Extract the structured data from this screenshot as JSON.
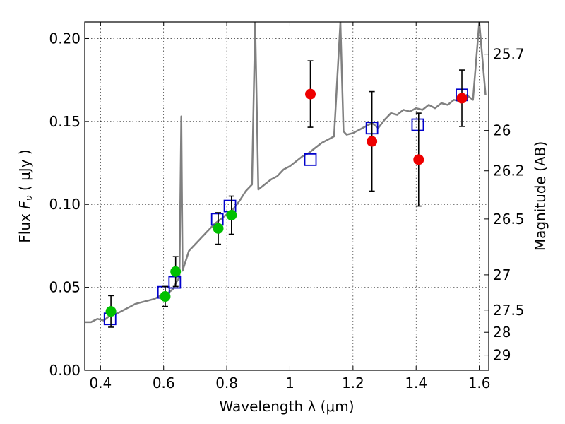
{
  "chart_data": {
    "type": "scatter",
    "title": "",
    "xlabel": "Wavelength  λ (μm)",
    "ylabel": "Flux  F_ν  ( μJy )",
    "ylabel_right": "Magnitude (AB)",
    "xlim": [
      0.35,
      1.63
    ],
    "ylim": [
      0.0,
      0.21
    ],
    "grid": true,
    "x_ticks": [
      {
        "value": 0.4,
        "label": "0.4"
      },
      {
        "value": 0.6,
        "label": "0.6"
      },
      {
        "value": 0.8,
        "label": "0.8"
      },
      {
        "value": 1.0,
        "label": "1"
      },
      {
        "value": 1.2,
        "label": "1.2"
      },
      {
        "value": 1.4,
        "label": "1.4"
      },
      {
        "value": 1.6,
        "label": "1.6"
      }
    ],
    "y_ticks": [
      {
        "value": 0.0,
        "label": "0.00"
      },
      {
        "value": 0.05,
        "label": "0.05"
      },
      {
        "value": 0.1,
        "label": "0.10"
      },
      {
        "value": 0.15,
        "label": "0.15"
      },
      {
        "value": 0.2,
        "label": "0.20"
      }
    ],
    "right_ticks": [
      {
        "value": 25.7,
        "label": "25.7"
      },
      {
        "value": 26.0,
        "label": "26"
      },
      {
        "value": 26.2,
        "label": "26.2"
      },
      {
        "value": 26.5,
        "label": "26.5"
      },
      {
        "value": 27.0,
        "label": "27"
      },
      {
        "value": 27.5,
        "label": "27.5"
      },
      {
        "value": 28.0,
        "label": "28"
      },
      {
        "value": 29.0,
        "label": "29"
      }
    ],
    "colors": {
      "model": "#808080",
      "model_points": "#0000cc",
      "green": "#00c000",
      "red": "#ee0000",
      "errorbar": "#000000"
    },
    "series": [
      {
        "name": "",
        "kind": "line",
        "color_key": "model",
        "x": [
          0.35,
          0.37,
          0.39,
          0.41,
          0.43,
          0.45,
          0.47,
          0.49,
          0.51,
          0.53,
          0.55,
          0.57,
          0.59,
          0.61,
          0.63,
          0.64,
          0.65,
          0.656,
          0.66,
          0.67,
          0.68,
          0.7,
          0.72,
          0.74,
          0.76,
          0.78,
          0.8,
          0.82,
          0.84,
          0.86,
          0.88,
          0.89,
          0.9,
          0.92,
          0.94,
          0.96,
          0.98,
          1.0,
          1.02,
          1.04,
          1.06,
          1.08,
          1.1,
          1.12,
          1.14,
          1.16,
          1.17,
          1.18,
          1.2,
          1.22,
          1.24,
          1.26,
          1.28,
          1.3,
          1.32,
          1.34,
          1.36,
          1.38,
          1.4,
          1.42,
          1.44,
          1.46,
          1.48,
          1.5,
          1.52,
          1.54,
          1.56,
          1.58,
          1.6,
          1.62
        ],
        "y": [
          0.029,
          0.029,
          0.031,
          0.03,
          0.033,
          0.034,
          0.036,
          0.038,
          0.04,
          0.041,
          0.042,
          0.043,
          0.045,
          0.046,
          0.049,
          0.053,
          0.056,
          0.153,
          0.06,
          0.066,
          0.072,
          0.076,
          0.08,
          0.084,
          0.088,
          0.091,
          0.094,
          0.097,
          0.102,
          0.108,
          0.112,
          0.21,
          0.109,
          0.112,
          0.115,
          0.117,
          0.121,
          0.123,
          0.126,
          0.129,
          0.131,
          0.134,
          0.137,
          0.139,
          0.141,
          0.21,
          0.144,
          0.142,
          0.143,
          0.145,
          0.147,
          0.149,
          0.146,
          0.151,
          0.155,
          0.154,
          0.157,
          0.156,
          0.158,
          0.157,
          0.16,
          0.158,
          0.161,
          0.16,
          0.163,
          0.162,
          0.166,
          0.163,
          0.21,
          0.166
        ]
      },
      {
        "name": "",
        "kind": "scatter",
        "marker": "square",
        "color_key": "model_points",
        "x": [
          0.43,
          0.6,
          0.635,
          0.77,
          0.81,
          1.065,
          1.26,
          1.405,
          1.545
        ],
        "y": [
          0.031,
          0.047,
          0.053,
          0.091,
          0.099,
          0.127,
          0.146,
          0.148,
          0.166
        ]
      },
      {
        "name": "",
        "kind": "scatter",
        "marker": "circle",
        "color_key": "green",
        "x": [
          0.433,
          0.605,
          0.638,
          0.773,
          0.815
        ],
        "y": [
          0.0355,
          0.0445,
          0.0595,
          0.0855,
          0.0935
        ],
        "err": [
          0.0095,
          0.006,
          0.009,
          0.0095,
          0.0115
        ]
      },
      {
        "name": "",
        "kind": "scatter",
        "marker": "circle",
        "color_key": "red",
        "x": [
          1.065,
          1.26,
          1.408,
          1.545
        ],
        "y": [
          0.1665,
          0.138,
          0.127,
          0.164
        ],
        "err": [
          0.02,
          0.03,
          0.028,
          0.017
        ]
      }
    ]
  }
}
